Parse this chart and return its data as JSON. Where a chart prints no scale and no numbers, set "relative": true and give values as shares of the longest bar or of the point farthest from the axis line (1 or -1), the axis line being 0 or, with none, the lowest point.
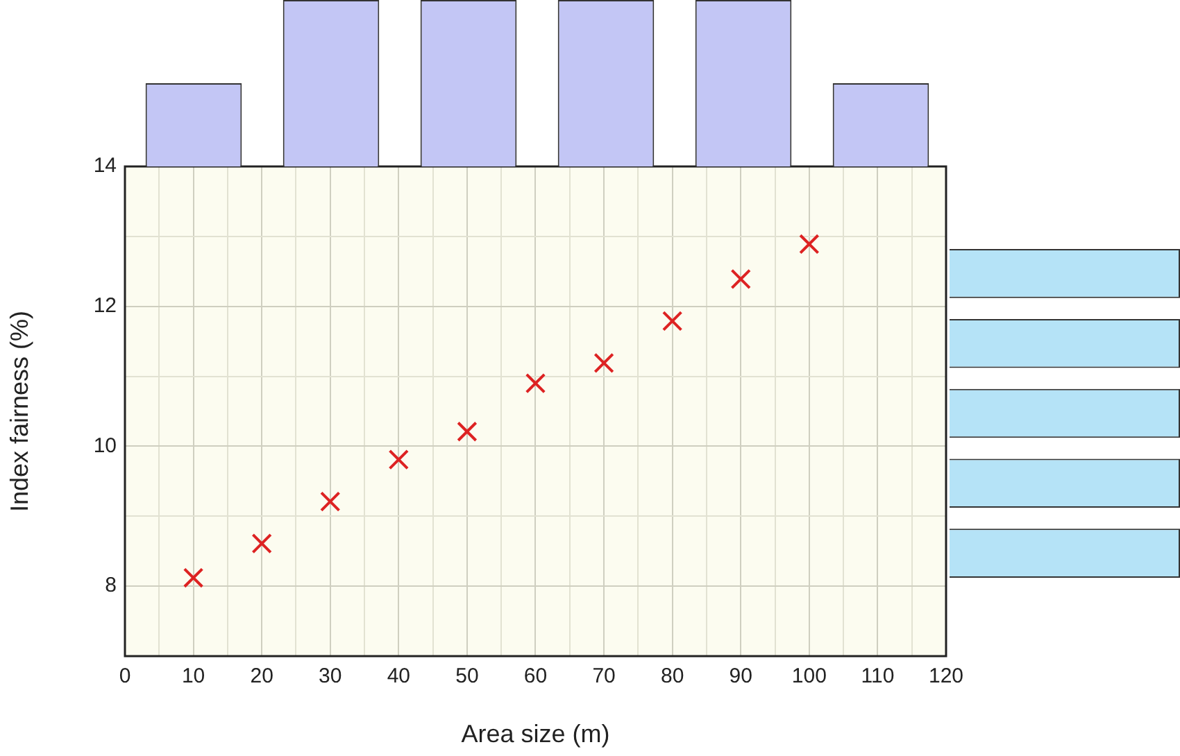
{
  "chart_data": [
    {
      "type": "scatter",
      "xlabel": "Area size (m)",
      "ylabel": "Index fairness (%)",
      "x": [
        10,
        20,
        30,
        40,
        50,
        60,
        70,
        80,
        90,
        100
      ],
      "values": [
        8.12,
        8.61,
        9.21,
        9.81,
        10.21,
        10.9,
        11.19,
        11.79,
        12.39,
        12.89
      ],
      "color": "#dd2222",
      "marker": "cross",
      "grid": true,
      "xlim": [
        0,
        120
      ],
      "ylim": [
        7,
        14
      ],
      "xticks": [
        0,
        {
          "value": 5,
          "label": null
        },
        10,
        {
          "value": 15,
          "label": null
        },
        20,
        {
          "value": 25,
          "label": null
        },
        30,
        {
          "value": 35,
          "label": null
        },
        40,
        {
          "value": 45,
          "label": null
        },
        50,
        {
          "value": 55,
          "label": null
        },
        60,
        {
          "value": 65,
          "label": null
        },
        70,
        {
          "value": 75,
          "label": null
        },
        80,
        {
          "value": 85,
          "label": null
        },
        90,
        {
          "value": 95,
          "label": null
        },
        100,
        {
          "value": 105,
          "label": null
        },
        110,
        {
          "value": 115,
          "label": null
        },
        120
      ],
      "yticks": [
        {
          "value": 7,
          "label": null
        },
        8,
        {
          "value": 9,
          "label": null
        },
        10,
        {
          "value": 11,
          "label": null
        },
        12,
        {
          "value": 13,
          "label": null
        },
        14
      ]
    },
    {
      "type": "bar",
      "categories": [
        null,
        null,
        null,
        null,
        null,
        null
      ],
      "values": [
        0.5,
        1,
        1,
        1,
        1,
        0.5
      ],
      "relative": true,
      "color": "#c3c6f5"
    },
    {
      "type": "bar",
      "orientation": "horizontal",
      "categories": [
        null,
        null,
        null,
        null,
        null
      ],
      "values": [
        1,
        1,
        1,
        1,
        1
      ],
      "relative": true,
      "color": "#b5e3f7"
    }
  ]
}
